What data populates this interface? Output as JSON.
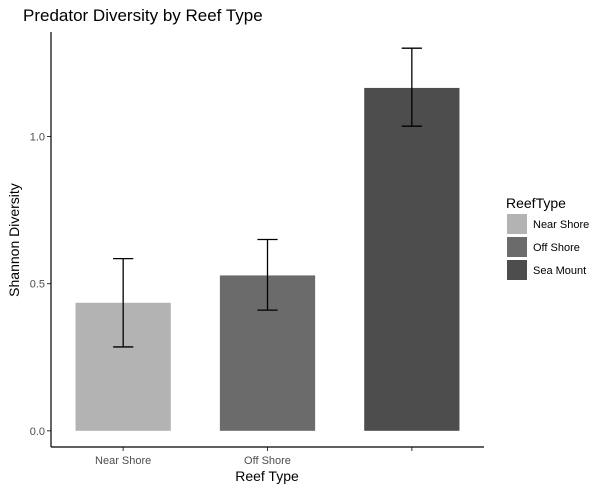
{
  "chart_data": {
    "type": "bar",
    "title": "Predator Diversity by Reef Type",
    "xlabel": "Reef Type",
    "ylabel": "Shannon Diversity",
    "categories": [
      "Near Shore",
      "Off Shore",
      ""
    ],
    "values": [
      0.435,
      0.528,
      1.165
    ],
    "error_low": [
      0.285,
      0.41,
      1.035
    ],
    "error_high": [
      0.585,
      0.65,
      1.3
    ],
    "ylim": [
      -0.055,
      1.355
    ],
    "yticks": [
      0.0,
      0.5,
      1.0
    ],
    "ytick_labels": [
      "0.0",
      "0.5",
      "1.0"
    ],
    "grid": false,
    "legend": {
      "title": "ReefType",
      "position": "right",
      "entries": [
        "Near Shore",
        "Off Shore",
        "Sea Mount"
      ]
    },
    "colors": [
      "#b3b3b3",
      "#6b6b6b",
      "#4d4d4d"
    ]
  }
}
